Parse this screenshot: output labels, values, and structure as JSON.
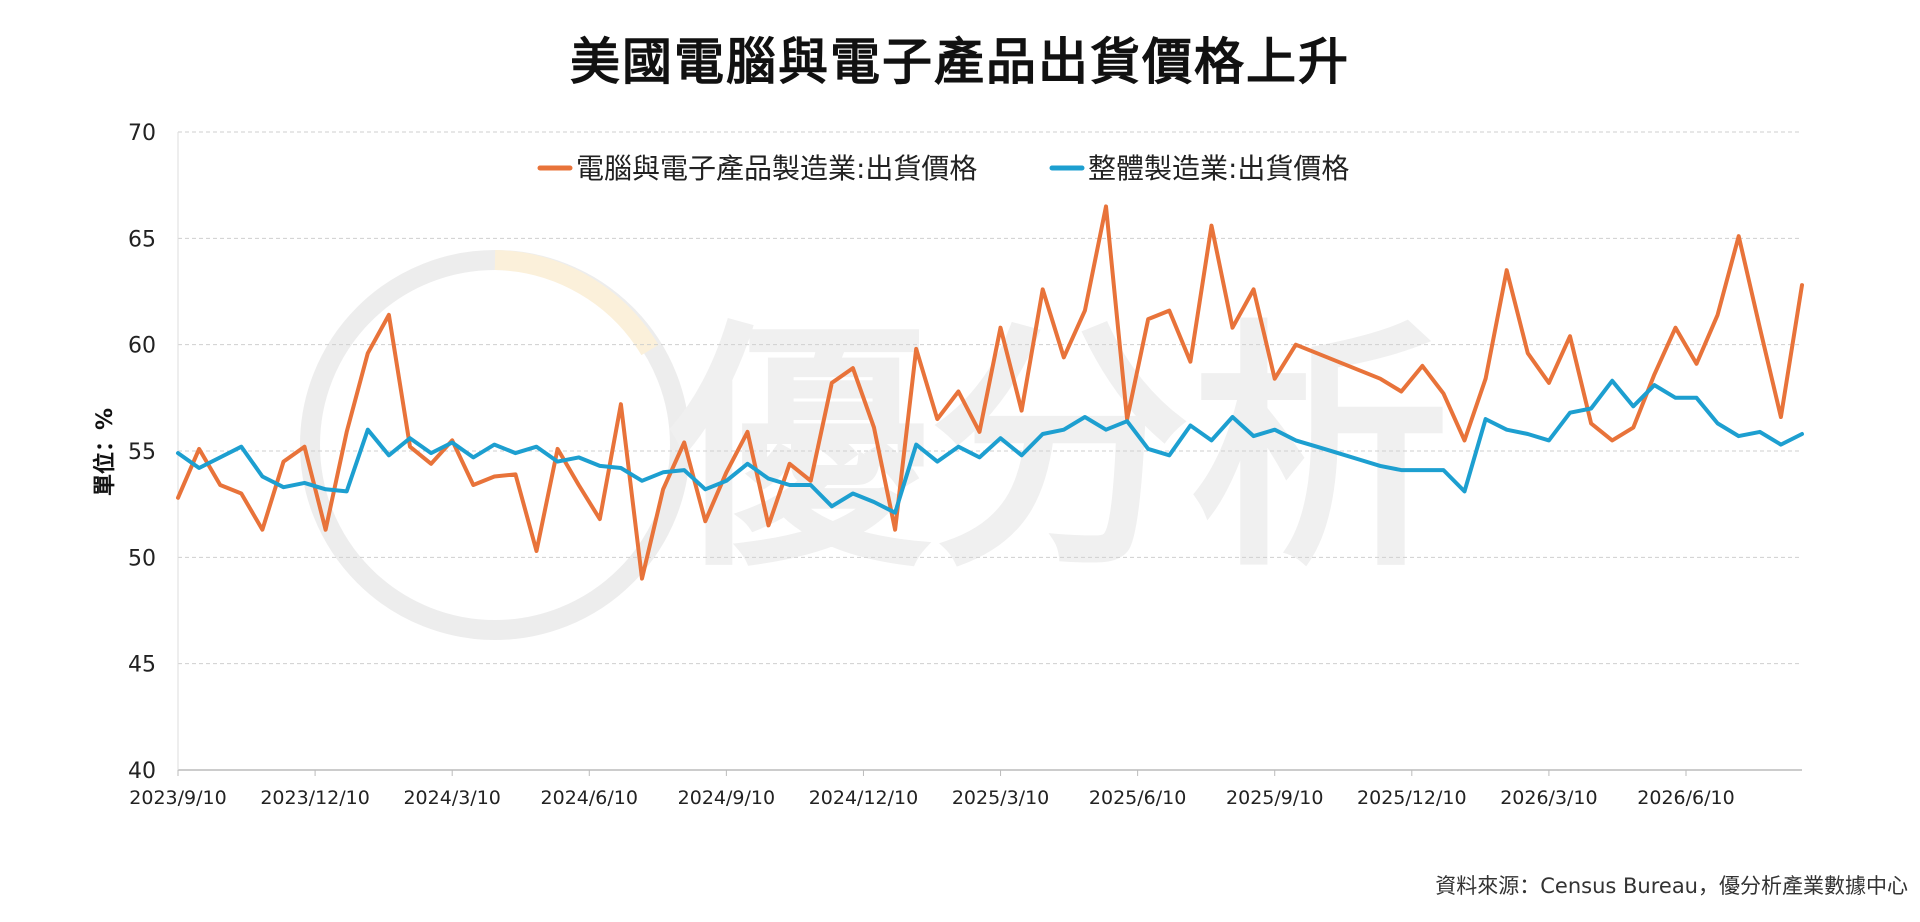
{
  "page": {
    "title": "美國電腦與電子產品出貨價格上升",
    "source": "資料來源：Census Bureau，優分析產業數據中心",
    "watermark_text": "優分析"
  },
  "chart_data": {
    "type": "line",
    "title": "美國電腦與電子產品出貨價格上升",
    "ylabel": "單位：%",
    "xlabel": "",
    "ylim": [
      40,
      70
    ],
    "yticks": [
      40,
      45,
      50,
      55,
      60,
      65,
      70
    ],
    "grid": true,
    "legend_position": "top-center",
    "x_tick_labels": [
      "2023/9/10",
      "2023/12/10",
      "2024/3/10",
      "2024/6/10",
      "2024/9/10",
      "2024/12/10",
      "2025/3/10",
      "2025/6/10",
      "2025/9/10",
      "2025/12/10",
      "2026/3/10",
      "2026/6/10"
    ],
    "x_tick_index": [
      0,
      6.5,
      13,
      19.5,
      26,
      32.5,
      39,
      45.5,
      52,
      58.5,
      65,
      71.5
    ],
    "series": [
      {
        "name": "電腦與電子產品製造業:出貨價格",
        "color": "#E8733A",
        "values": [
          52.8,
          55.1,
          53.4,
          53.0,
          51.3,
          54.5,
          55.2,
          51.3,
          55.9,
          59.6,
          61.4,
          55.2,
          54.4,
          55.5,
          53.4,
          53.8,
          53.9,
          50.3,
          55.1,
          53.4,
          51.8,
          57.2,
          49.0,
          53.2,
          55.4,
          51.7,
          54.0,
          55.9,
          51.5,
          54.4,
          53.6,
          58.2,
          58.9,
          56.1,
          51.3,
          59.8,
          56.5,
          57.8,
          55.9,
          60.8,
          56.9,
          62.6,
          59.4,
          61.6,
          66.5,
          56.5,
          61.2,
          61.6,
          59.2,
          65.6,
          60.8,
          62.6,
          58.4,
          60.0,
          59.6,
          59.2,
          58.8,
          58.4,
          57.8,
          59.0,
          57.7,
          55.5,
          58.4,
          63.5,
          59.6,
          58.2,
          60.4,
          56.3,
          55.5,
          56.1,
          58.6,
          60.8,
          59.1,
          61.4,
          65.1,
          60.8,
          56.6,
          62.8
        ]
      },
      {
        "name": "整體製造業:出貨價格",
        "color": "#1D9FD0",
        "values": [
          54.9,
          54.2,
          54.7,
          55.2,
          53.8,
          53.3,
          53.5,
          53.2,
          53.1,
          56.0,
          54.8,
          55.6,
          54.9,
          55.4,
          54.7,
          55.3,
          54.9,
          55.2,
          54.5,
          54.7,
          54.3,
          54.2,
          53.6,
          54.0,
          54.1,
          53.2,
          53.6,
          54.4,
          53.7,
          53.4,
          53.4,
          52.4,
          53.0,
          52.6,
          52.1,
          55.3,
          54.5,
          55.2,
          54.7,
          55.6,
          54.8,
          55.8,
          56.0,
          56.6,
          56.0,
          56.4,
          55.1,
          54.8,
          56.2,
          55.5,
          56.6,
          55.7,
          56.0,
          55.5,
          55.2,
          54.9,
          54.6,
          54.3,
          54.1,
          54.1,
          54.1,
          53.1,
          56.5,
          56.0,
          55.8,
          55.5,
          56.8,
          57.0,
          58.3,
          57.1,
          58.1,
          57.5,
          57.5,
          56.3,
          55.7,
          55.9,
          55.3,
          55.8
        ]
      }
    ]
  }
}
